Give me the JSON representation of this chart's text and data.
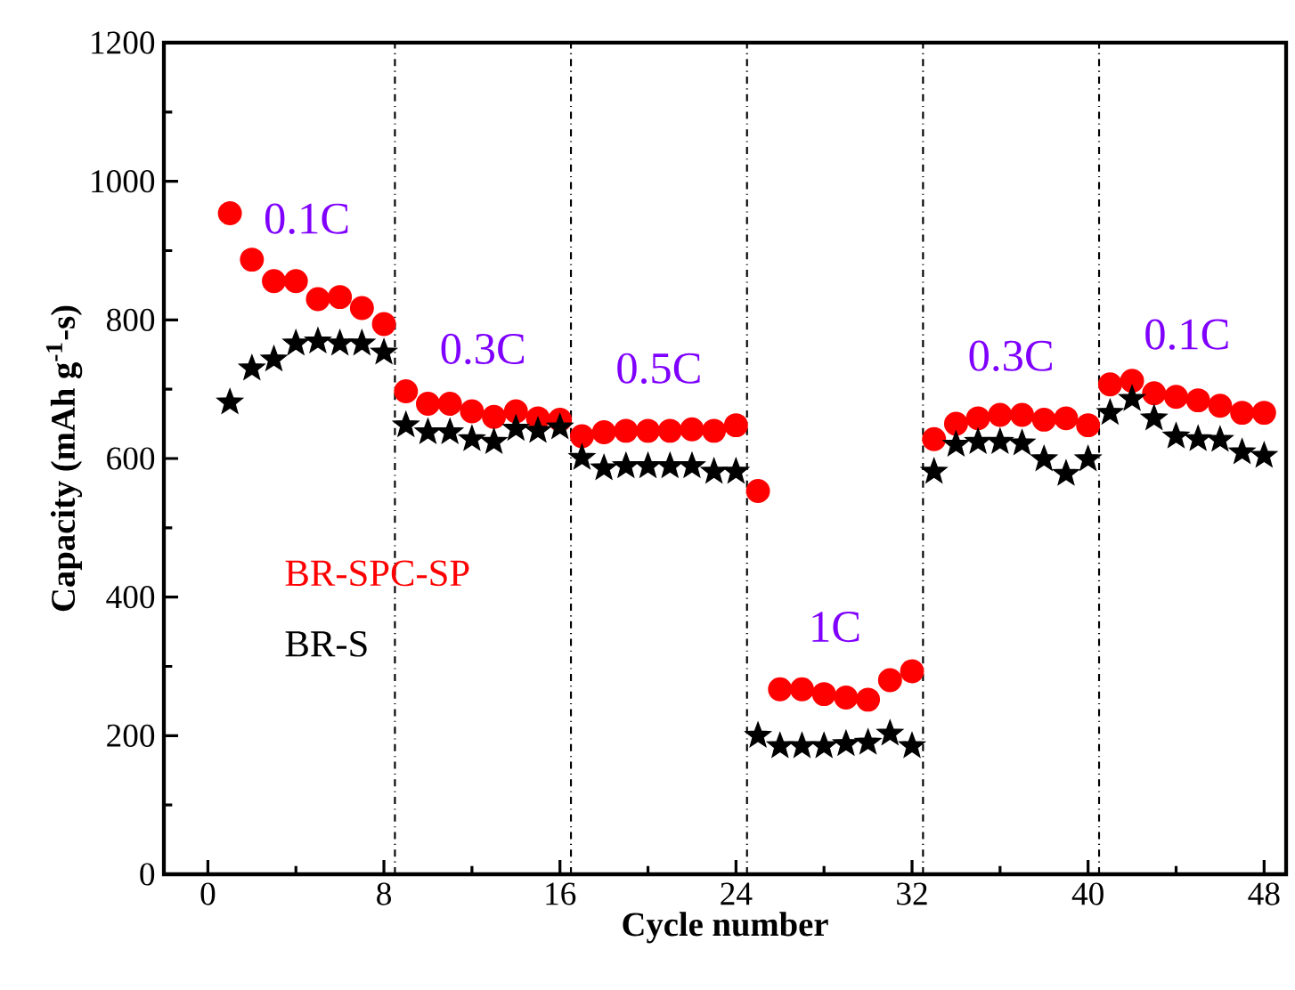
{
  "chart_data": {
    "type": "scatter",
    "xlabel": "Cycle number",
    "ylabel": "Capacity (mAh g$^{-1}$-s)",
    "x": [
      1,
      2,
      3,
      4,
      5,
      6,
      7,
      8,
      9,
      10,
      11,
      12,
      13,
      14,
      15,
      16,
      17,
      18,
      19,
      20,
      21,
      22,
      23,
      24,
      25,
      26,
      27,
      28,
      29,
      30,
      31,
      32,
      33,
      34,
      35,
      36,
      37,
      38,
      39,
      40,
      41,
      42,
      43,
      44,
      45,
      46,
      47,
      48
    ],
    "series": [
      {
        "name": "BR-SPC-SP",
        "color": "#ff0000",
        "marker": "circle",
        "values": [
          954,
          887,
          856,
          856,
          830,
          833,
          817,
          794,
          697,
          679,
          679,
          668,
          660,
          668,
          658,
          656,
          632,
          638,
          640,
          640,
          640,
          642,
          640,
          648,
          553,
          267,
          267,
          260,
          255,
          252,
          280,
          293,
          628,
          650,
          658,
          663,
          663,
          656,
          658,
          648,
          707,
          712,
          694,
          689,
          684,
          676,
          666,
          666
        ]
      },
      {
        "name": "BR-S",
        "color": "#000000",
        "marker": "star",
        "values": [
          681,
          730,
          743,
          766,
          769,
          766,
          766,
          753,
          648,
          638,
          638,
          628,
          624,
          643,
          640,
          645,
          601,
          586,
          589,
          589,
          589,
          589,
          581,
          581,
          200,
          185,
          185,
          185,
          188,
          190,
          203,
          185,
          581,
          620,
          624,
          624,
          622,
          599,
          578,
          599,
          666,
          686,
          658,
          632,
          628,
          627,
          609,
          604
        ]
      }
    ],
    "xlim": [
      -2,
      49
    ],
    "ylim": [
      0,
      1200
    ],
    "xticks": [
      0,
      8,
      16,
      24,
      32,
      40,
      48
    ],
    "yticks": [
      0,
      200,
      400,
      600,
      800,
      1000,
      1200
    ],
    "ref_lines": [
      {
        "axis": "x",
        "value": 8.5,
        "line_style": "dashdot"
      },
      {
        "axis": "x",
        "value": 16.5,
        "line_style": "dashdot"
      },
      {
        "axis": "x",
        "value": 24.5,
        "line_style": "dashdot"
      },
      {
        "axis": "x",
        "value": 32.5,
        "line_style": "dashdot"
      },
      {
        "axis": "x",
        "value": 40.5,
        "line_style": "dashdot"
      }
    ],
    "annotations": [
      "0.1C",
      "0.3C",
      "0.5C",
      "1C",
      "0.3C",
      "0.1C"
    ],
    "legend": "bottom left",
    "grid": false
  }
}
